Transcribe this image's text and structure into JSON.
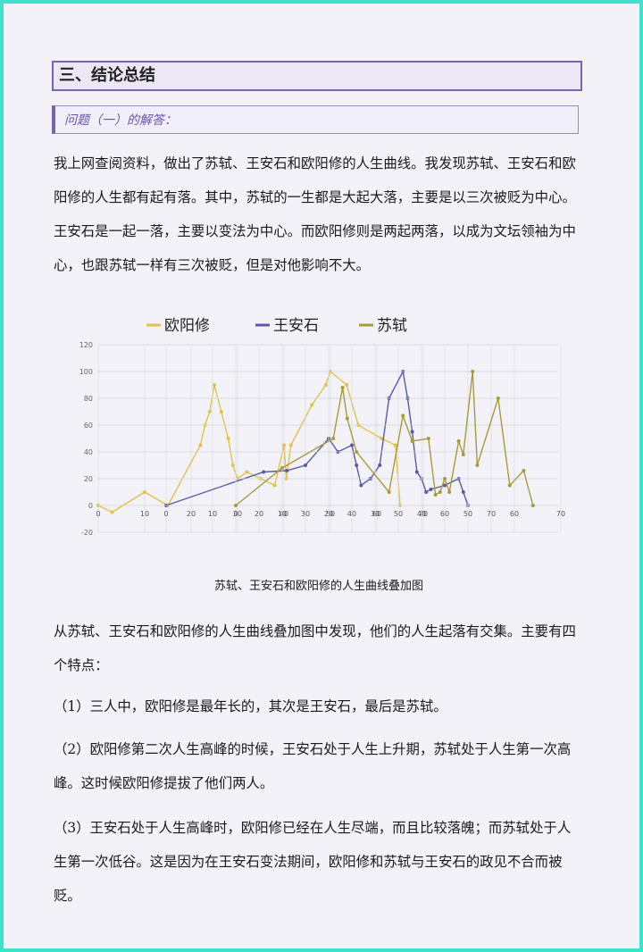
{
  "header": {
    "title": "三、结论总结",
    "subtitle": "问题（一）的解答："
  },
  "intro": "我上网查阅资料，做出了苏轼、王安石和欧阳修的人生曲线。我发现苏轼、王安石和欧阳修的人生都有起有落。其中，苏轼的一生都是大起大落，主要是以三次被贬为中心。王安石是一起一落，主要以变法为中心。而欧阳修则是两起两落，以成为文坛领袖为中心，也跟苏轼一样有三次被贬，但是对他影响不大。",
  "chart_data": [
    {
      "type": "line",
      "xlim": [
        0,
        70
      ],
      "xticks": [
        0,
        10,
        20,
        30,
        40,
        50,
        60,
        70
      ],
      "ylim": [
        -20,
        120
      ],
      "yticks": [
        -20,
        0,
        20,
        40,
        60,
        80,
        100,
        120
      ],
      "grid": true,
      "series": [
        {
          "name": "欧阳修",
          "color": "#e2c24a",
          "x": [
            0,
            3,
            10,
            15,
            22,
            23,
            24,
            25,
            26.5,
            28,
            29,
            30,
            32,
            35,
            38,
            40,
            40.5,
            41.5,
            46,
            49,
            50,
            53.5,
            56,
            61,
            64,
            65
          ],
          "values": [
            0,
            -5,
            10,
            0,
            45,
            60,
            70,
            90,
            70,
            50,
            30,
            20,
            25,
            20,
            15,
            45,
            20,
            45,
            75,
            90,
            100,
            90,
            60,
            50,
            45,
            0
          ]
        }
      ]
    },
    {
      "type": "line",
      "xlim": [
        0,
        70
      ],
      "xticks": [
        0,
        10,
        20,
        30,
        40,
        50,
        60,
        70
      ],
      "ylim": [
        -20,
        120
      ],
      "yticks": [
        -20,
        0,
        20,
        40,
        60,
        80,
        100,
        120
      ],
      "grid": true,
      "series": [
        {
          "name": "王安石",
          "color": "#5b5aa6",
          "x": [
            0,
            21,
            26,
            30,
            35,
            37,
            40,
            41,
            42,
            44,
            46,
            48,
            51,
            52,
            53,
            54,
            55,
            56,
            57,
            60,
            63,
            64,
            65
          ],
          "values": [
            0,
            25,
            26,
            30,
            50,
            40,
            45,
            30,
            15,
            20,
            30,
            80,
            100,
            80,
            55,
            25,
            20,
            10,
            12,
            15,
            20,
            10,
            0
          ]
        }
      ]
    },
    {
      "type": "line",
      "xlim": [
        0,
        70
      ],
      "xticks": [
        0,
        10,
        20,
        30,
        40,
        50,
        60,
        70
      ],
      "ylim": [
        -20,
        120
      ],
      "yticks": [
        -20,
        0,
        20,
        40,
        60,
        80,
        100,
        120
      ],
      "grid": true,
      "series": [
        {
          "name": "苏轼",
          "color": "#a99a3c",
          "x": [
            0,
            10,
            21,
            23,
            24,
            26,
            33,
            36,
            38,
            41.5,
            43,
            44,
            45,
            46,
            48,
            49,
            51,
            52,
            56.5,
            59,
            62,
            64
          ],
          "values": [
            0,
            28,
            50,
            88,
            65,
            40,
            10,
            67,
            48,
            50,
            8,
            10,
            20,
            10,
            48,
            38,
            100,
            30,
            80,
            15,
            26,
            0
          ]
        }
      ]
    }
  ],
  "caption": "苏轼、王安石和欧阳修的人生曲线叠加图",
  "finding": "从苏轼、王安石和欧阳修的人生曲线叠加图中发现，他们的人生起落有交集。主要有四个特点：",
  "points": [
    "（1）三人中，欧阳修是最年长的，其次是王安石，最后是苏轼。",
    "（2）欧阳修第二次人生高峰的时候，王安石处于人生上升期，苏轼处于人生第一次高峰。这时候欧阳修提拔了他们两人。",
    "（3）王安石处于人生高峰时，欧阳修已经在人生尽端，而且比较落魄；而苏轼处于人生第一次低谷。这是因为在王安石变法期间，欧阳修和苏轼与王安石的政见不合而被贬。"
  ]
}
